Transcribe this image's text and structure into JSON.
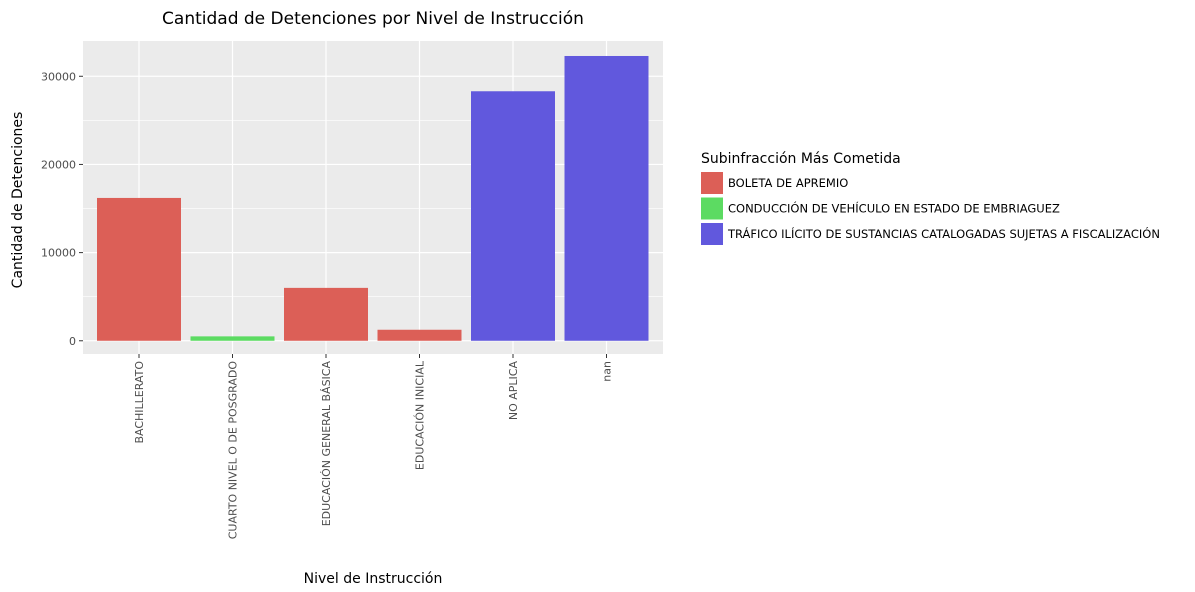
{
  "chart_data": {
    "type": "bar",
    "title": "Cantidad de Detenciones por Nivel de Instrucción",
    "xlabel": "Nivel de Instrucción",
    "ylabel": "Cantidad de Detenciones",
    "categories": [
      "BACHILLERATO",
      "CUARTO NIVEL O DE POSGRADO",
      "EDUCACIÓN GENERAL BÁSICA",
      "EDUCACIÓN INICIAL",
      "NO APLICA",
      "nan"
    ],
    "values": [
      16200,
      500,
      6000,
      1250,
      28300,
      32300
    ],
    "fill_groups": [
      0,
      1,
      0,
      0,
      2,
      2
    ],
    "ylim": [
      -1500,
      34000
    ],
    "yticks": [
      0,
      10000,
      20000,
      30000
    ],
    "grid": true,
    "legend": {
      "title": "Subinfracción Más Cometida",
      "placement": "right",
      "entries": [
        {
          "label": "BOLETA DE APREMIO",
          "color": "#dc5f57"
        },
        {
          "label": "CONDUCCIÓN DE VEHÍCULO EN ESTADO DE EMBRIAGUEZ",
          "color": "#5cdb62"
        },
        {
          "label": "TRÁFICO ILÍCITO DE SUSTANCIAS CATALOGADAS SUJETAS A FISCALIZACIÓN",
          "color": "#6158dd"
        }
      ]
    },
    "panel_background": "#ebebeb",
    "grid_color": "#ffffff"
  }
}
